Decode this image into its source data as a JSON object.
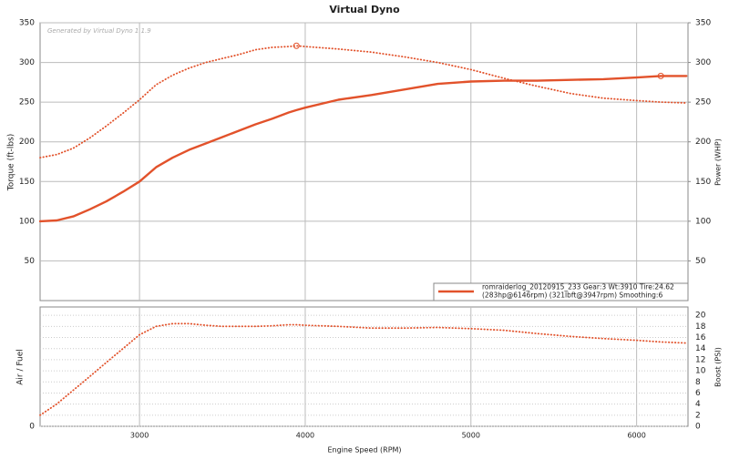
{
  "chart_data": [
    {
      "type": "line",
      "title": "Virtual Dyno",
      "watermark": "Generated by Virtual Dyno 1.1.9",
      "ylabel": "Torque (ft-lbs)",
      "y2label": "Power (WHP)",
      "x": [
        2400,
        2500,
        2600,
        2700,
        2800,
        2900,
        3000,
        3100,
        3200,
        3300,
        3400,
        3500,
        3600,
        3700,
        3800,
        3900,
        3947,
        4000,
        4200,
        4400,
        4600,
        4800,
        5000,
        5200,
        5400,
        5600,
        5800,
        6000,
        6146,
        6300
      ],
      "xlim": [
        2400,
        6310
      ],
      "ylim": [
        0,
        350
      ],
      "yticks": [
        50,
        100,
        150,
        200,
        250,
        300,
        350
      ],
      "y2lim": [
        0,
        350
      ],
      "y2ticks": [
        50,
        100,
        150,
        200,
        250,
        300,
        350
      ],
      "legend": [
        "romraiderlog_20120915_233 Gear:3 Wt:3910 Tire:24.62",
        "(283hp@6146rpm) (321lbft@3947rpm) Smoothing:6"
      ],
      "series": [
        {
          "color": "#e2522b",
          "style": "dotted",
          "values": [
            180,
            184,
            192,
            205,
            220,
            236,
            253,
            272,
            284,
            293,
            300,
            305,
            310,
            316,
            319,
            320,
            321,
            320,
            317,
            313,
            307,
            300,
            291,
            280,
            270,
            261,
            255,
            252,
            250,
            249
          ]
        },
        {
          "color": "#e2522b",
          "style": "solid",
          "axis": "y2",
          "values": [
            100,
            101,
            106,
            115,
            125,
            137,
            150,
            168,
            180,
            190,
            198,
            206,
            214,
            222,
            229,
            237,
            240,
            243,
            253,
            259,
            266,
            273,
            276,
            277,
            277,
            278,
            279,
            281,
            283,
            283
          ]
        }
      ]
    },
    {
      "type": "line",
      "xlabel": "Engine Speed (RPM)",
      "ylabel": "Air / Fuel",
      "y2label": "Boost (PSI)",
      "x": [
        2400,
        2500,
        2600,
        2700,
        2800,
        2900,
        3000,
        3100,
        3200,
        3300,
        3400,
        3500,
        3600,
        3700,
        3800,
        3900,
        3947,
        4000,
        4200,
        4400,
        4600,
        4800,
        5000,
        5200,
        5400,
        5600,
        5800,
        6000,
        6146,
        6300
      ],
      "xlim": [
        2400,
        6310
      ],
      "xticks": [
        3000,
        4000,
        5000,
        6000
      ],
      "ylim": [
        0,
        21.5
      ],
      "yticks": [
        0
      ],
      "y2lim": [
        0,
        21.5
      ],
      "y2ticks": [
        0,
        2,
        4,
        6,
        8,
        10,
        12,
        14,
        16,
        18,
        20
      ],
      "series": [
        {
          "color": "#e2522b",
          "style": "dotted",
          "axis": "y2",
          "values": [
            2,
            4,
            6.5,
            9,
            11.5,
            14,
            16.5,
            18,
            18.5,
            18.5,
            18.2,
            18,
            18,
            18,
            18.1,
            18.3,
            18.3,
            18.2,
            18,
            17.7,
            17.7,
            17.8,
            17.6,
            17.3,
            16.7,
            16.2,
            15.8,
            15.5,
            15.2,
            15
          ]
        }
      ]
    }
  ]
}
